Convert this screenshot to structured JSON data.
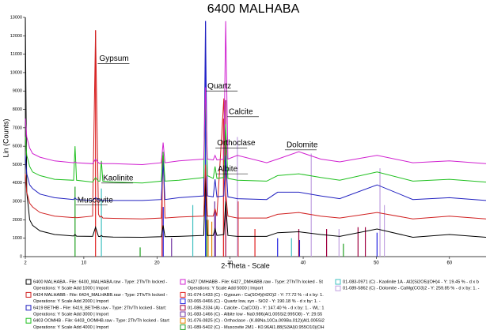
{
  "chart_data": {
    "type": "line",
    "title": "6400  MALHABA",
    "x_label": "2-Theta - Scale",
    "y_label": "Lin (Counts)",
    "xlim": [
      2,
      65
    ],
    "xticks": [
      2,
      10,
      20,
      30,
      40,
      50,
      60
    ],
    "ylim": [
      0,
      13000
    ],
    "yticks": [
      0,
      1000,
      2000,
      3000,
      4000,
      5000,
      6000,
      7000,
      8000,
      9000,
      10000,
      11000,
      12000,
      13000
    ],
    "x": [
      2,
      2.2,
      2.6,
      3,
      4,
      6,
      8.6,
      8.8,
      9.0,
      11.2,
      11.6,
      12.0,
      12.2,
      12.4,
      12.6,
      14,
      18,
      20.6,
      20.85,
      21.1,
      23,
      26.4,
      26.64,
      26.9,
      27.7,
      27.95,
      28.2,
      29.15,
      29.4,
      29.7,
      31,
      35,
      36.5,
      39.4,
      42.4,
      45,
      50.1,
      55,
      60,
      65
    ],
    "series": [
      {
        "name": "6400  MALHABA - File: 6400_MALHABA.raw - Type: 2Th/Th locked -",
        "operations": "Operations: Y Scale Add 1000 | Import",
        "color": "#000000",
        "values": [
          13000,
          3500,
          2000,
          1700,
          1400,
          1200,
          1120,
          1200,
          1110,
          1100,
          1600,
          1100,
          1090,
          1150,
          1090,
          1060,
          1050,
          1080,
          1700,
          1080,
          1100,
          1150,
          4300,
          1150,
          1150,
          1500,
          1150,
          1200,
          3000,
          1150,
          1100,
          1100,
          1300,
          1350,
          1200,
          1100,
          1500,
          1050,
          1200,
          1050
        ]
      },
      {
        "name": "6424  MALHABB - File: 6424_MALHABB.raw - Type: 2Th/Th locked -",
        "operations": "Operations: Y Scale Add 2000 | Import",
        "color": "#d02020",
        "values": [
          4500,
          3500,
          2900,
          2700,
          2400,
          2200,
          2120,
          2150,
          2110,
          2200,
          12300,
          2300,
          2150,
          2200,
          2100,
          2080,
          2050,
          2100,
          5500,
          2100,
          2150,
          2200,
          5000,
          2200,
          2200,
          2600,
          2200,
          8600,
          3500,
          2200,
          2100,
          2100,
          2300,
          2400,
          2200,
          2100,
          2400,
          2050,
          2200,
          2050
        ]
      },
      {
        "name": "6419  BETHB - File: 6419_BETHB.raw - Type: 2Th/Th locked - Start:",
        "operations": "Operations: Y Scale Add 3000 | Import",
        "color": "#2020c0",
        "values": [
          5500,
          4500,
          3900,
          3700,
          3400,
          3200,
          3100,
          3200,
          3100,
          3050,
          3200,
          3100,
          3050,
          3100,
          3050,
          3050,
          3050,
          3100,
          5200,
          3100,
          3200,
          3300,
          12800,
          3300,
          3250,
          4200,
          3250,
          3300,
          5500,
          3250,
          3150,
          3100,
          3500,
          3500,
          3300,
          3150,
          3900,
          3100,
          3200,
          3050
        ]
      },
      {
        "name": "6403  OOMHB - File: 6403_OOMHB.raw - Type: 2Th/Th locked - Start",
        "operations": "Operations: Y Scale Add 4000 | Import",
        "color": "#20c020",
        "values": [
          6500,
          5500,
          4900,
          4600,
          4400,
          4200,
          4150,
          6000,
          4150,
          4050,
          4300,
          4100,
          4100,
          5200,
          4100,
          4050,
          4000,
          4100,
          5700,
          4100,
          4150,
          4300,
          9000,
          4400,
          4250,
          4900,
          4250,
          4300,
          7200,
          4250,
          4150,
          4100,
          4400,
          4500,
          4300,
          4150,
          4600,
          4100,
          4200,
          4050
        ]
      },
      {
        "name": "6427  DMHABB - File: 6427_DMHABB.raw - Type: 2Th/Th locked - St",
        "operations": "Operations: Y Scale Add 5000 | Import",
        "color": "#d020d0",
        "values": [
          7500,
          6500,
          5900,
          5600,
          5400,
          5200,
          5100,
          5150,
          5100,
          5050,
          5300,
          5100,
          5050,
          5100,
          5050,
          5050,
          5000,
          5100,
          6200,
          5100,
          5200,
          5300,
          9200,
          5300,
          5250,
          5500,
          5250,
          5300,
          12800,
          5300,
          5500,
          5100,
          5300,
          5700,
          5300,
          5150,
          5500,
          5100,
          5200,
          5050
        ]
      }
    ],
    "references": [
      {
        "name": "01-074-1433 (C) - Gypsum - Ca(SO4)(H2O)2 - Y: 77.72 % - d x by: 1.",
        "color": "#e02020",
        "x": [
          11.6,
          20.7,
          29.1,
          31.1,
          33.4
        ],
        "values": [
          12300,
          5500,
          7500,
          3000,
          1500
        ]
      },
      {
        "name": "03-065-0466 (C) - Quartz low, syn - SiO2 - Y: 190.18 % - d x by: 1. -",
        "color": "#2020e0",
        "x": [
          20.86,
          26.64,
          36.5,
          39.5,
          50.1
        ],
        "values": [
          2700,
          12800,
          1000,
          900,
          1300
        ]
      },
      {
        "name": "01-086-2334 (A) - Calcite - Ca(CO3) - Y: 147.40 % - d x by: 1. - WL: 1",
        "color": "#a00040",
        "x": [
          29.4,
          39.4,
          43.2,
          47.5,
          48.5
        ],
        "values": [
          8500,
          1500,
          1500,
          1600,
          1600
        ]
      },
      {
        "name": "01-083-1466 (C) - Albite low - Na0.986(Al1.005Si2.995O8) - Y: 29.55",
        "color": "#7030a0",
        "x": [
          22.0,
          27.9,
          28.0
        ],
        "values": [
          1000,
          3000,
          2500
        ]
      },
      {
        "name": "01-076-0825 (C) - Orthoclase - (K.88Na.10Ca.009Ba.012)(Al1.005Si2",
        "color": "#e08000",
        "x": [
          27.0,
          27.5
        ],
        "values": [
          2000,
          1900
        ]
      },
      {
        "name": "01-089-5402 (C) - Muscovite 2M1 - K0.96Al1.88(Si3Al)0.955O10)(OH",
        "color": "#20a020",
        "x": [
          8.8,
          17.7,
          26.8,
          45.5
        ],
        "values": [
          3800,
          500,
          2000,
          700
        ]
      },
      {
        "name": "01-083-0971 (C) - Kaolinite 1A - Al2(Si2O5)(OH)4 - Y: 19.45 % - d x b",
        "color": "#40c0c0",
        "x": [
          12.4,
          24.9,
          38.4
        ],
        "values": [
          3700,
          2800,
          1000
        ]
      },
      {
        "name": "01-089-5862 (C) - Dolomite - CaMg(CO3)2 - Y: 259.85 % - d x by: 1. -",
        "color": "#c0a0e0",
        "x": [
          31.0,
          41.1,
          44.9,
          50.5,
          51.1
        ],
        "values": [
          6500,
          5600,
          1500,
          4800,
          2800
        ]
      }
    ],
    "annotations": [
      {
        "text": "Gypsum",
        "x": 11.9,
        "y": 10500
      },
      {
        "text": "Quartz",
        "x": 26.7,
        "y": 9000
      },
      {
        "text": "Calcite",
        "x": 29.6,
        "y": 7600
      },
      {
        "text": "Orthoclase",
        "x": 28.0,
        "y": 5900
      },
      {
        "text": "Dolomite",
        "x": 37.5,
        "y": 5800
      },
      {
        "text": "Albite",
        "x": 28.1,
        "y": 4500
      },
      {
        "text": "Kaolinite",
        "x": 12.4,
        "y": 4000
      },
      {
        "text": "Muscovite",
        "x": 8.9,
        "y": 2800
      }
    ]
  }
}
